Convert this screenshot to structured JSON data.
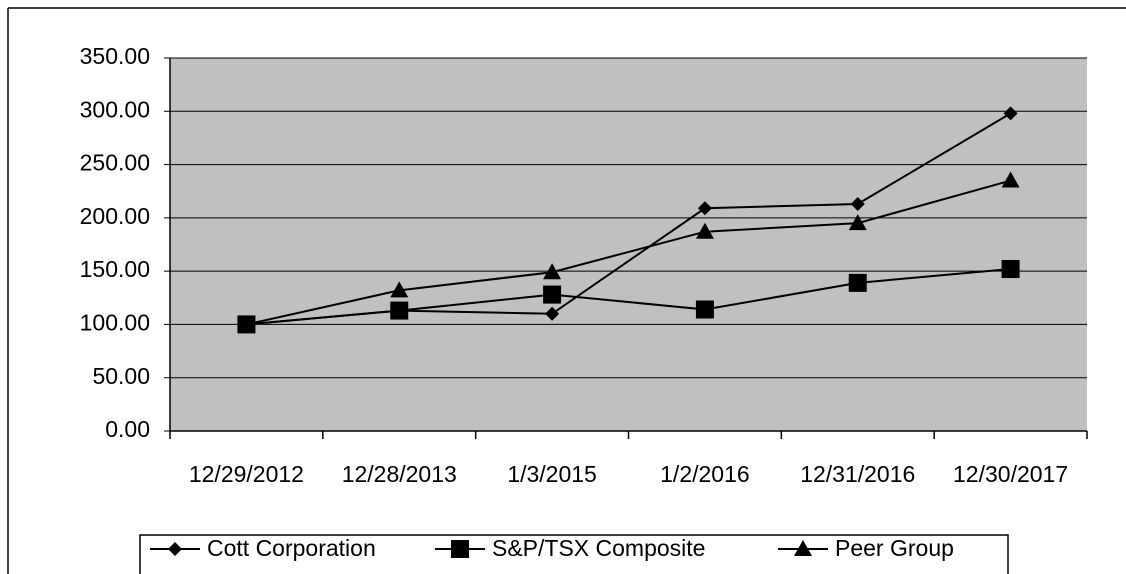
{
  "chart_data": {
    "type": "line",
    "categories": [
      "12/29/2012",
      "12/28/2013",
      "1/3/2015",
      "1/2/2016",
      "12/31/2016",
      "12/30/2017"
    ],
    "series": [
      {
        "name": "Cott Corporation",
        "color": "#000000",
        "marker": "diamond",
        "values": [
          100,
          113,
          110,
          209,
          213,
          298
        ]
      },
      {
        "name": "S&P/TSX Composite",
        "color": "#000000",
        "marker": "square",
        "values": [
          100,
          113,
          128,
          114,
          139,
          152
        ]
      },
      {
        "name": "Peer Group",
        "color": "#000000",
        "marker": "triangle",
        "values": [
          100,
          132,
          149,
          187,
          195,
          235
        ]
      }
    ],
    "ylim": [
      0,
      350
    ],
    "yticks": [
      {
        "value": 0,
        "label": "0.00"
      },
      {
        "value": 50,
        "label": "50.00"
      },
      {
        "value": 100,
        "label": "100.00"
      },
      {
        "value": 150,
        "label": "150.00"
      },
      {
        "value": 200,
        "label": "200.00"
      },
      {
        "value": 250,
        "label": "250.00"
      },
      {
        "value": 300,
        "label": "300.00"
      },
      {
        "value": 350,
        "label": "350.00"
      }
    ],
    "grid": true,
    "legend": "bottom"
  }
}
